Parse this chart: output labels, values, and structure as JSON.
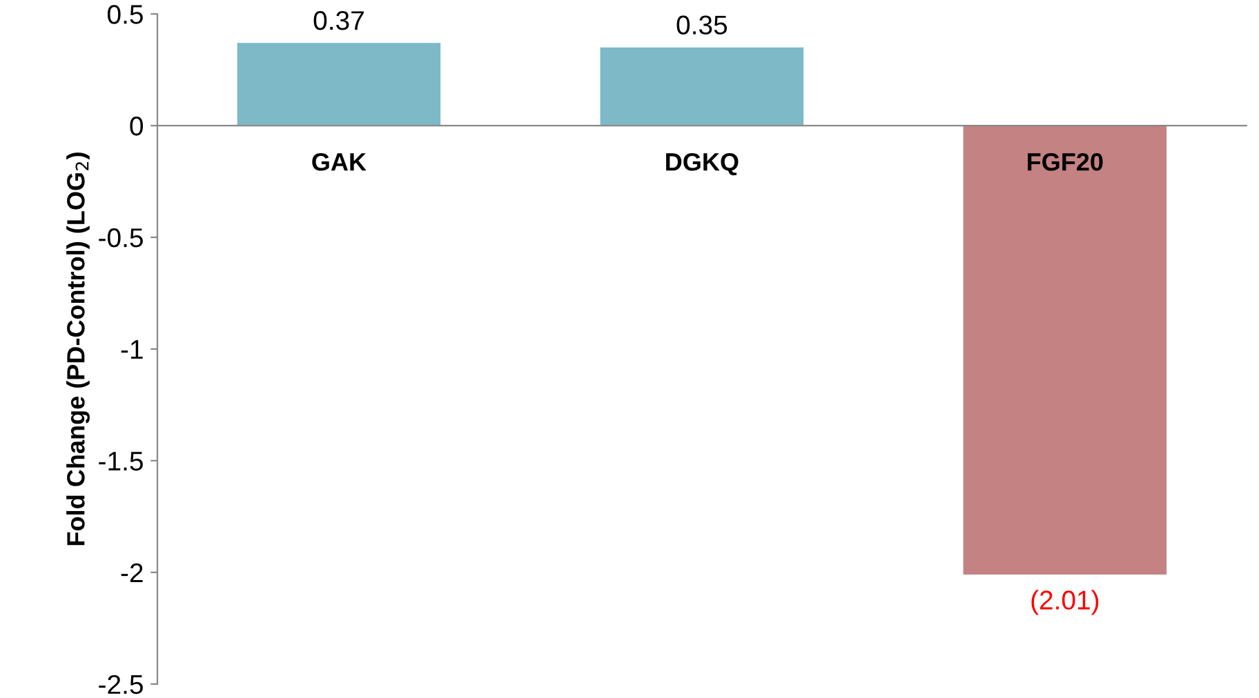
{
  "chart_data": {
    "type": "bar",
    "ylabel": "Fold Change (PD-Control) (LOG$_{2}$)",
    "categories": [
      "GAK",
      "DGKQ",
      "FGF20"
    ],
    "values": [
      0.37,
      0.35,
      -2.01
    ],
    "colors": [
      "#7db9c6",
      "#7db9c6",
      "#c48282"
    ],
    "value_labels": [
      "0.37",
      "0.35",
      "(2.01)"
    ],
    "ylim": [
      -2.5,
      0.5
    ],
    "yticks": [
      0.5,
      0,
      -0.5,
      -1,
      -1.5,
      -2,
      -2.5
    ],
    "grid": false,
    "legend": false
  }
}
